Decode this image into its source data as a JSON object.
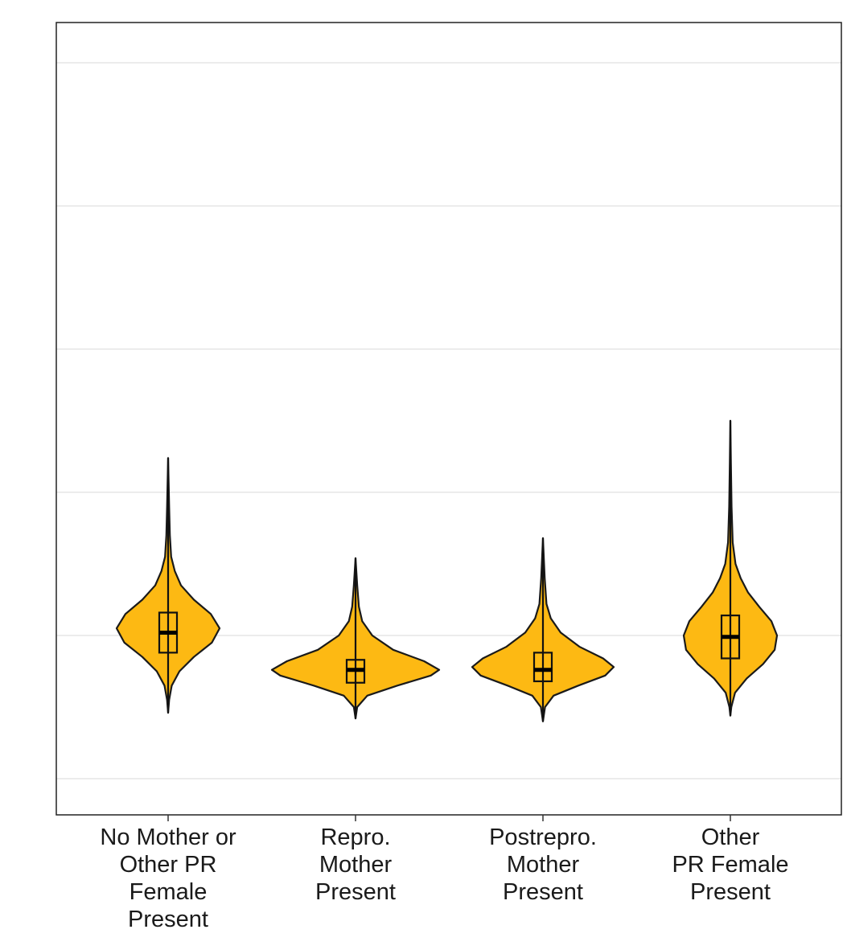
{
  "chart_data": {
    "type": "violin",
    "title": "",
    "xlabel": "",
    "ylabel": "",
    "ylim": [
      0,
      5.5
    ],
    "gridlines": [
      0.5,
      1.5,
      2.5,
      3.5,
      4.5,
      5.5
    ],
    "grid": "horizontal-major",
    "fill_color": "#FDB913",
    "outline_color": "#1a1a1a",
    "categories": [
      [
        "No Mother or",
        "Other PR",
        "Female",
        "Present"
      ],
      [
        "Repro.",
        "Mother",
        "Present"
      ],
      [
        "Postrepro.",
        "Mother",
        "Present"
      ],
      [
        "Other",
        "PR Female",
        "Present"
      ]
    ],
    "series": [
      {
        "min": 0.96,
        "max": 2.74,
        "q1": 1.38,
        "median": 1.52,
        "q3": 1.66,
        "density": [
          [
            0.96,
            0.0
          ],
          [
            1.05,
            0.02
          ],
          [
            1.15,
            0.07
          ],
          [
            1.25,
            0.22
          ],
          [
            1.35,
            0.5
          ],
          [
            1.45,
            0.85
          ],
          [
            1.55,
            1.0
          ],
          [
            1.65,
            0.83
          ],
          [
            1.75,
            0.5
          ],
          [
            1.85,
            0.25
          ],
          [
            1.95,
            0.13
          ],
          [
            2.05,
            0.06
          ],
          [
            2.2,
            0.035
          ],
          [
            2.4,
            0.02
          ],
          [
            2.74,
            0.0
          ]
        ]
      },
      {
        "min": 0.92,
        "max": 2.04,
        "q1": 1.17,
        "median": 1.26,
        "q3": 1.33,
        "density": [
          [
            0.92,
            0.0
          ],
          [
            1.0,
            0.02
          ],
          [
            1.08,
            0.14
          ],
          [
            1.15,
            0.5
          ],
          [
            1.22,
            0.9
          ],
          [
            1.26,
            1.0
          ],
          [
            1.32,
            0.82
          ],
          [
            1.4,
            0.45
          ],
          [
            1.5,
            0.2
          ],
          [
            1.6,
            0.08
          ],
          [
            1.7,
            0.04
          ],
          [
            1.85,
            0.02
          ],
          [
            2.04,
            0.0
          ]
        ]
      },
      {
        "min": 0.9,
        "max": 2.18,
        "q1": 1.18,
        "median": 1.26,
        "q3": 1.38,
        "density": [
          [
            0.9,
            0.0
          ],
          [
            1.0,
            0.03
          ],
          [
            1.08,
            0.15
          ],
          [
            1.15,
            0.5
          ],
          [
            1.22,
            0.88
          ],
          [
            1.28,
            1.0
          ],
          [
            1.34,
            0.85
          ],
          [
            1.42,
            0.52
          ],
          [
            1.52,
            0.25
          ],
          [
            1.62,
            0.11
          ],
          [
            1.72,
            0.05
          ],
          [
            1.9,
            0.025
          ],
          [
            2.18,
            0.0
          ]
        ]
      },
      {
        "min": 0.94,
        "max": 3.0,
        "q1": 1.34,
        "median": 1.49,
        "q3": 1.64,
        "density": [
          [
            0.94,
            0.0
          ],
          [
            1.0,
            0.02
          ],
          [
            1.1,
            0.1
          ],
          [
            1.2,
            0.35
          ],
          [
            1.3,
            0.7
          ],
          [
            1.4,
            0.95
          ],
          [
            1.5,
            1.0
          ],
          [
            1.6,
            0.88
          ],
          [
            1.7,
            0.62
          ],
          [
            1.8,
            0.38
          ],
          [
            1.9,
            0.22
          ],
          [
            2.0,
            0.11
          ],
          [
            2.15,
            0.05
          ],
          [
            2.4,
            0.025
          ],
          [
            2.7,
            0.012
          ],
          [
            3.0,
            0.0
          ]
        ]
      }
    ]
  }
}
